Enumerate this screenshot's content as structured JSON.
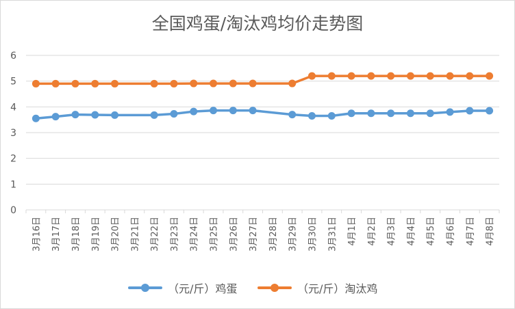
{
  "chart_data": {
    "type": "line",
    "title": "全国鸡蛋/淘汰鸡均价走势图",
    "xlabel": "",
    "ylabel": "",
    "ylim": [
      0,
      6
    ],
    "yticks": [
      "0",
      "1",
      "2",
      "3",
      "4",
      "5",
      "6"
    ],
    "grid": true,
    "legend_position": "bottom",
    "categories": [
      "3月16日",
      "3月17日",
      "3月18日",
      "3月19日",
      "3月20日",
      "3月21日",
      "3月22日",
      "3月23日",
      "3月24日",
      "3月25日",
      "3月26日",
      "3月27日",
      "3月28日",
      "3月29日",
      "3月30日",
      "3月31日",
      "4月1日",
      "4月2日",
      "4月3日",
      "4月4日",
      "4月5日",
      "4月6日",
      "4月7日",
      "4月8日"
    ],
    "series": [
      {
        "name": "（元/斤）鸡蛋",
        "color": "#5b9bd5",
        "values": [
          3.55,
          3.62,
          3.7,
          3.69,
          3.68,
          null,
          3.68,
          3.73,
          3.82,
          3.86,
          3.86,
          3.86,
          null,
          3.7,
          3.65,
          3.65,
          3.75,
          3.75,
          3.75,
          3.75,
          3.75,
          3.8,
          3.85,
          3.85
        ]
      },
      {
        "name": "（元/斤）淘汰鸡",
        "color": "#ed7d31",
        "values": [
          4.9,
          4.9,
          4.9,
          4.9,
          4.9,
          null,
          4.9,
          4.9,
          4.91,
          4.91,
          4.91,
          4.91,
          null,
          4.91,
          5.2,
          5.2,
          5.2,
          5.2,
          5.2,
          5.2,
          5.2,
          5.2,
          5.2,
          5.2
        ]
      }
    ]
  }
}
